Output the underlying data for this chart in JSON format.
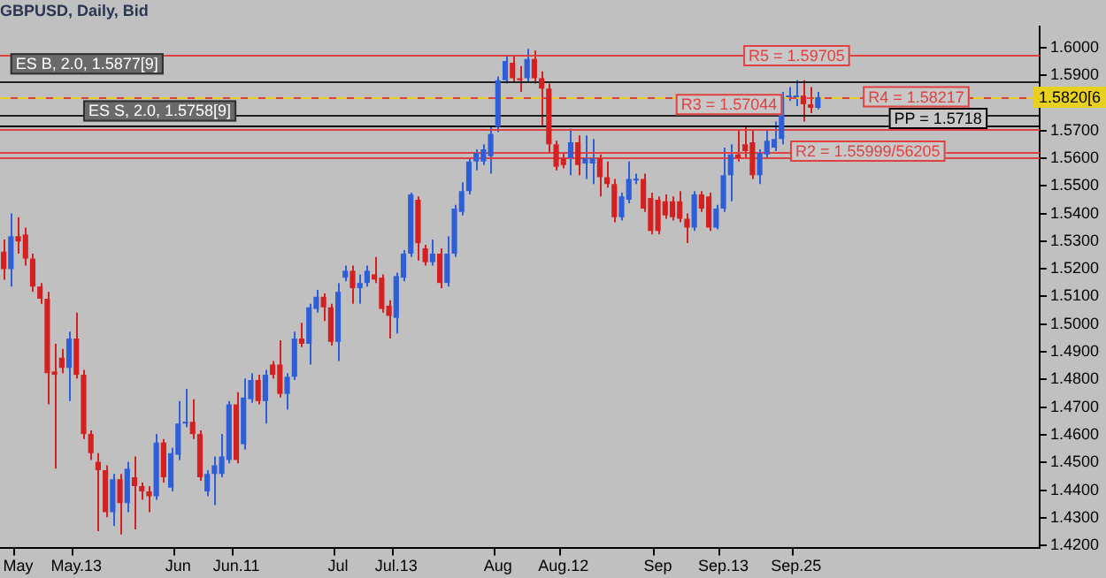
{
  "chart_data": {
    "type": "candlestick",
    "title": "GBPUSD, Daily, Bid",
    "categories": [
      null,
      null,
      "May",
      null,
      null,
      null,
      null,
      null,
      null,
      null,
      "May.13",
      null,
      null,
      null,
      null,
      null,
      null,
      null,
      null,
      null,
      null,
      null,
      null,
      null,
      "Jun",
      null,
      null,
      null,
      null,
      null,
      null,
      null,
      "Jun.11",
      null,
      null,
      null,
      null,
      null,
      null,
      null,
      null,
      null,
      null,
      null,
      null,
      null,
      "Jul",
      null,
      null,
      null,
      null,
      null,
      null,
      null,
      "Jul.13",
      null,
      null,
      null,
      null,
      null,
      null,
      null,
      null,
      null,
      null,
      null,
      null,
      null,
      "Aug",
      null,
      null,
      null,
      null,
      null,
      null,
      null,
      null,
      "Aug.12",
      null,
      null,
      null,
      null,
      null,
      null,
      null,
      null,
      null,
      null,
      null,
      null,
      "Sep",
      null,
      null,
      null,
      null,
      null,
      null,
      null,
      null,
      "Sep.13",
      null,
      null,
      null,
      null,
      null,
      null,
      null,
      null,
      null,
      "Sep.25",
      null,
      null,
      null,
      null,
      null,
      null,
      null,
      null,
      null,
      null,
      null,
      null,
      null,
      null,
      null,
      null,
      null,
      null,
      null,
      null,
      null,
      null,
      null,
      null,
      null,
      null,
      null,
      null,
      null,
      null,
      null,
      null,
      null
    ],
    "ohlc": [
      [
        1.5262,
        1.5306,
        1.5161,
        1.5199
      ],
      [
        1.5199,
        1.54,
        1.5136,
        1.5318
      ],
      [
        1.5318,
        1.5387,
        1.5255,
        1.5299
      ],
      [
        1.5324,
        1.5349,
        1.5212,
        1.5237
      ],
      [
        1.5237,
        1.5255,
        1.5117,
        1.5136
      ],
      [
        1.5136,
        1.5149,
        1.5074,
        1.5092
      ],
      [
        1.5092,
        1.5117,
        1.471,
        1.4823
      ],
      [
        1.4829,
        1.4929,
        1.4478,
        1.4817
      ],
      [
        1.4879,
        1.4911,
        1.4823,
        1.4842
      ],
      [
        1.4842,
        1.4973,
        1.4722,
        1.4948
      ],
      [
        1.4948,
        1.5042,
        1.4804,
        1.4817
      ],
      [
        1.4817,
        1.4835,
        1.4585,
        1.4603
      ],
      [
        1.4603,
        1.4616,
        1.4509,
        1.4534
      ],
      [
        1.4503,
        1.4534,
        1.4252,
        1.4472
      ],
      [
        1.4472,
        1.449,
        1.4302,
        1.4321
      ],
      [
        1.4321,
        1.4459,
        1.4271,
        1.444
      ],
      [
        1.444,
        1.4459,
        1.424,
        1.4353
      ],
      [
        1.4353,
        1.4503,
        1.4321,
        1.4478
      ],
      [
        1.4447,
        1.4522,
        1.4258,
        1.4415
      ],
      [
        1.4415,
        1.4428,
        1.4365,
        1.4396
      ],
      [
        1.4396,
        1.4415,
        1.4321,
        1.4378
      ],
      [
        1.4378,
        1.4603,
        1.4365,
        1.4572
      ],
      [
        1.4572,
        1.4585,
        1.4428,
        1.4447
      ],
      [
        1.4409,
        1.4553,
        1.4396,
        1.4534
      ],
      [
        1.4528,
        1.4722,
        1.4509,
        1.4641
      ],
      [
        1.4641,
        1.4766,
        1.4628,
        1.4647
      ],
      [
        1.4647,
        1.4729,
        1.4585,
        1.4603
      ],
      [
        1.4603,
        1.4616,
        1.4434,
        1.4447
      ],
      [
        1.4396,
        1.4472,
        1.4378,
        1.4459
      ],
      [
        1.4459,
        1.4522,
        1.4346,
        1.449
      ],
      [
        1.4459,
        1.4603,
        1.4447,
        1.4522
      ],
      [
        1.4509,
        1.4722,
        1.4497,
        1.471
      ],
      [
        1.471,
        1.4754,
        1.4497,
        1.4509
      ],
      [
        1.4566,
        1.4804,
        1.4547,
        1.4735
      ],
      [
        1.4729,
        1.4823,
        1.4716,
        1.4798
      ],
      [
        1.4798,
        1.4817,
        1.471,
        1.4722
      ],
      [
        1.4722,
        1.4835,
        1.4641,
        1.4817
      ],
      [
        1.4854,
        1.4867,
        1.4804,
        1.4817
      ],
      [
        1.4854,
        1.4942,
        1.4735,
        1.4748
      ],
      [
        1.4748,
        1.4823,
        1.4691,
        1.481
      ],
      [
        1.481,
        1.4973,
        1.4798,
        1.4948
      ],
      [
        1.4948,
        1.5005,
        1.4917,
        1.4929
      ],
      [
        1.4929,
        1.5074,
        1.4854,
        1.5061
      ],
      [
        1.5055,
        1.5124,
        1.5042,
        1.5099
      ],
      [
        1.5099,
        1.5111,
        1.5011,
        1.5061
      ],
      [
        1.5061,
        1.5074,
        1.4923,
        1.4936
      ],
      [
        1.4936,
        1.5149,
        1.4867,
        1.5117
      ],
      [
        1.5168,
        1.5212,
        1.5155,
        1.5193
      ],
      [
        1.5193,
        1.5212,
        1.5074,
        1.513
      ],
      [
        1.513,
        1.518,
        1.5074,
        1.5149
      ],
      [
        1.5149,
        1.5212,
        1.5136,
        1.5193
      ],
      [
        1.518,
        1.5243,
        1.5149,
        1.5161
      ],
      [
        1.5168,
        1.518,
        1.5042,
        1.5055
      ],
      [
        1.5067,
        1.5086,
        1.4948,
        1.503
      ],
      [
        1.5023,
        1.5186,
        1.4967,
        1.5174
      ],
      [
        1.5168,
        1.5268,
        1.5155,
        1.5255
      ],
      [
        1.5255,
        1.5475,
        1.5243,
        1.5469
      ],
      [
        1.545,
        1.5462,
        1.523,
        1.5293
      ],
      [
        1.5274,
        1.5287,
        1.5212,
        1.5224
      ],
      [
        1.5224,
        1.5306,
        1.5212,
        1.5255
      ],
      [
        1.5255,
        1.5274,
        1.513,
        1.5149
      ],
      [
        1.5149,
        1.5318,
        1.5136,
        1.5255
      ],
      [
        1.5255,
        1.5431,
        1.5243,
        1.5418
      ],
      [
        1.5406,
        1.5513,
        1.5393,
        1.5481
      ],
      [
        1.5481,
        1.56,
        1.5469,
        1.5588
      ],
      [
        1.5588,
        1.5632,
        1.5556,
        1.5619
      ],
      [
        1.5588,
        1.565,
        1.5575,
        1.5632
      ],
      [
        1.5607,
        1.5713,
        1.5544,
        1.5688
      ],
      [
        1.5713,
        1.5895,
        1.5694,
        1.5882
      ],
      [
        1.5882,
        1.597,
        1.587,
        1.5951
      ],
      [
        1.5945,
        1.597,
        1.5876,
        1.5889
      ],
      [
        1.5889,
        1.5933,
        1.5839,
        1.5882
      ],
      [
        1.5889,
        1.5995,
        1.5876,
        1.5958
      ],
      [
        1.5958,
        1.5989,
        1.587,
        1.5889
      ],
      [
        1.5889,
        1.5914,
        1.5713,
        1.5851
      ],
      [
        1.5851,
        1.587,
        1.5619,
        1.565
      ],
      [
        1.565,
        1.5663,
        1.5556,
        1.5569
      ],
      [
        1.56,
        1.5619,
        1.5563,
        1.5575
      ],
      [
        1.56,
        1.5707,
        1.5538,
        1.5657
      ],
      [
        1.5657,
        1.5682,
        1.5538,
        1.5575
      ],
      [
        1.5581,
        1.5682,
        1.5525,
        1.56
      ],
      [
        1.5581,
        1.5669,
        1.5506,
        1.56
      ],
      [
        1.56,
        1.5613,
        1.5462,
        1.5531
      ],
      [
        1.5531,
        1.5588,
        1.5494,
        1.5506
      ],
      [
        1.5506,
        1.5525,
        1.5368,
        1.5387
      ],
      [
        1.5387,
        1.5475,
        1.5375,
        1.5462
      ],
      [
        1.545,
        1.5588,
        1.5437,
        1.5525
      ],
      [
        1.5519,
        1.5544,
        1.5506,
        1.5525
      ],
      [
        1.5525,
        1.5544,
        1.5406,
        1.5418
      ],
      [
        1.5456,
        1.5475,
        1.5324,
        1.5337
      ],
      [
        1.545,
        1.5462,
        1.5324,
        1.5337
      ],
      [
        1.5444,
        1.5469,
        1.5381,
        1.5393
      ],
      [
        1.5444,
        1.5462,
        1.5375,
        1.5387
      ],
      [
        1.5444,
        1.5481,
        1.5368,
        1.5381
      ],
      [
        1.5381,
        1.54,
        1.5293,
        1.5349
      ],
      [
        1.5349,
        1.5481,
        1.5337,
        1.5469
      ],
      [
        1.5469,
        1.5481,
        1.5406,
        1.5418
      ],
      [
        1.5462,
        1.5475,
        1.5337,
        1.5349
      ],
      [
        1.5349,
        1.5431,
        1.5343,
        1.5418
      ],
      [
        1.5418,
        1.5638,
        1.5406,
        1.5538
      ],
      [
        1.5538,
        1.565,
        1.5444,
        1.5613
      ],
      [
        1.5613,
        1.5701,
        1.5588,
        1.56
      ],
      [
        1.565,
        1.5713,
        1.56,
        1.5625
      ],
      [
        1.5657,
        1.5701,
        1.5525,
        1.5538
      ],
      [
        1.5538,
        1.5632,
        1.5506,
        1.5619
      ],
      [
        1.5613,
        1.5701,
        1.56,
        1.5663
      ],
      [
        1.5638,
        1.5732,
        1.5625,
        1.5669
      ],
      [
        1.5669,
        1.5839,
        1.565,
        1.582
      ],
      [
        1.582,
        1.5857,
        1.5807,
        1.5826
      ],
      [
        1.582,
        1.5882,
        1.5788,
        1.5826
      ],
      [
        1.5826,
        1.5882,
        1.5732,
        1.5795
      ],
      [
        1.5795,
        1.5857,
        1.5763,
        1.5782
      ],
      [
        1.5782,
        1.5839,
        1.5776,
        1.582
      ],
      null,
      null,
      null,
      null,
      null,
      null,
      null,
      null,
      null,
      null,
      null,
      null,
      null,
      null,
      null,
      null,
      null,
      null,
      null,
      null,
      null,
      null,
      null,
      null,
      null,
      null,
      null,
      null,
      null,
      null
    ],
    "ylim": [
      1.419,
      1.6077
    ],
    "yticks": [
      {
        "value": 1.42,
        "label": "1.4200"
      },
      {
        "value": 1.43,
        "label": "1.4300"
      },
      {
        "value": 1.44,
        "label": "1.4400"
      },
      {
        "value": 1.45,
        "label": "1.4500"
      },
      {
        "value": 1.46,
        "label": "1.4600"
      },
      {
        "value": 1.47,
        "label": "1.4700"
      },
      {
        "value": 1.48,
        "label": "1.4800"
      },
      {
        "value": 1.49,
        "label": "1.4900"
      },
      {
        "value": 1.5,
        "label": "1.5000"
      },
      {
        "value": 1.51,
        "label": "1.5100"
      },
      {
        "value": 1.52,
        "label": "1.5200"
      },
      {
        "value": 1.53,
        "label": "1.5300"
      },
      {
        "value": 1.54,
        "label": "1.5400"
      },
      {
        "value": 1.55,
        "label": "1.5500"
      },
      {
        "value": 1.56,
        "label": "1.5600"
      },
      {
        "value": 1.57,
        "label": "1.5700"
      },
      {
        "value": 1.58,
        "label": null
      },
      {
        "value": 1.59,
        "label": "1.5900"
      },
      {
        "value": 1.6,
        "label": "1.6000"
      }
    ],
    "ref_lines": [
      {
        "axis": "y",
        "value": 1.5877,
        "label": "ES B, 2.0, 1.5877[9]",
        "color": "#202020"
      },
      {
        "axis": "y",
        "value": 1.5758,
        "label": "ES S, 2.0, 1.5758[9]",
        "color": "#202020"
      },
      {
        "axis": "y",
        "value": 1.59705,
        "label": "R5 = 1.59705",
        "color": "#e04040"
      },
      {
        "axis": "y",
        "value": 1.58217,
        "label": "R4 = 1.58217",
        "color": "#e04040"
      },
      {
        "axis": "y",
        "value": 1.5718,
        "label": "PP = 1.5718",
        "color": "#000000"
      },
      {
        "axis": "y",
        "value": 1.57044,
        "label": "R3 = 1.57044",
        "color": "#e04040"
      },
      {
        "axis": "y",
        "value": 1.55999,
        "label": "R2 = 1.55999/56205",
        "color": "#e04040"
      },
      {
        "axis": "y",
        "value": 1.56205,
        "color": "#e04040"
      },
      {
        "axis": "y",
        "value": 1.582,
        "label": "1.5820[6",
        "color": "#e8d020",
        "line_style": "dashed"
      }
    ]
  }
}
